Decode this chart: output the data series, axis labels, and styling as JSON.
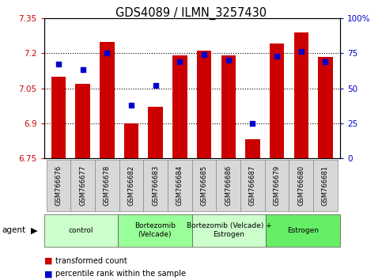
{
  "title": "GDS4089 / ILMN_3257430",
  "samples": [
    "GSM766676",
    "GSM766677",
    "GSM766678",
    "GSM766682",
    "GSM766683",
    "GSM766684",
    "GSM766685",
    "GSM766686",
    "GSM766687",
    "GSM766679",
    "GSM766680",
    "GSM766681"
  ],
  "transformed_count": [
    7.1,
    7.07,
    7.25,
    6.9,
    6.97,
    7.19,
    7.21,
    7.19,
    6.83,
    7.24,
    7.29,
    7.185
  ],
  "percentile_rank": [
    67,
    63,
    75,
    38,
    52,
    69,
    74,
    70,
    25,
    73,
    76,
    69
  ],
  "ylim_left": [
    6.75,
    7.35
  ],
  "ylim_right": [
    0,
    100
  ],
  "yticks_left": [
    6.75,
    6.9,
    7.05,
    7.2,
    7.35
  ],
  "yticks_right": [
    0,
    25,
    50,
    75,
    100
  ],
  "ytick_labels_left": [
    "6.75",
    "6.9",
    "7.05",
    "7.2",
    "7.35"
  ],
  "ytick_labels_right": [
    "0",
    "25",
    "50",
    "75",
    "100%"
  ],
  "bar_color": "#cc0000",
  "dot_color": "#0000cc",
  "groups": [
    {
      "label": "control",
      "start": 0,
      "end": 3,
      "color": "#ccffcc"
    },
    {
      "label": "Bortezomib\n(Velcade)",
      "start": 3,
      "end": 6,
      "color": "#99ff99"
    },
    {
      "label": "Bortezomib (Velcade) +\nEstrogen",
      "start": 6,
      "end": 9,
      "color": "#ccffcc"
    },
    {
      "label": "Estrogen",
      "start": 9,
      "end": 12,
      "color": "#66ee66"
    }
  ],
  "legend_bar_label": "transformed count",
  "legend_dot_label": "percentile rank within the sample"
}
